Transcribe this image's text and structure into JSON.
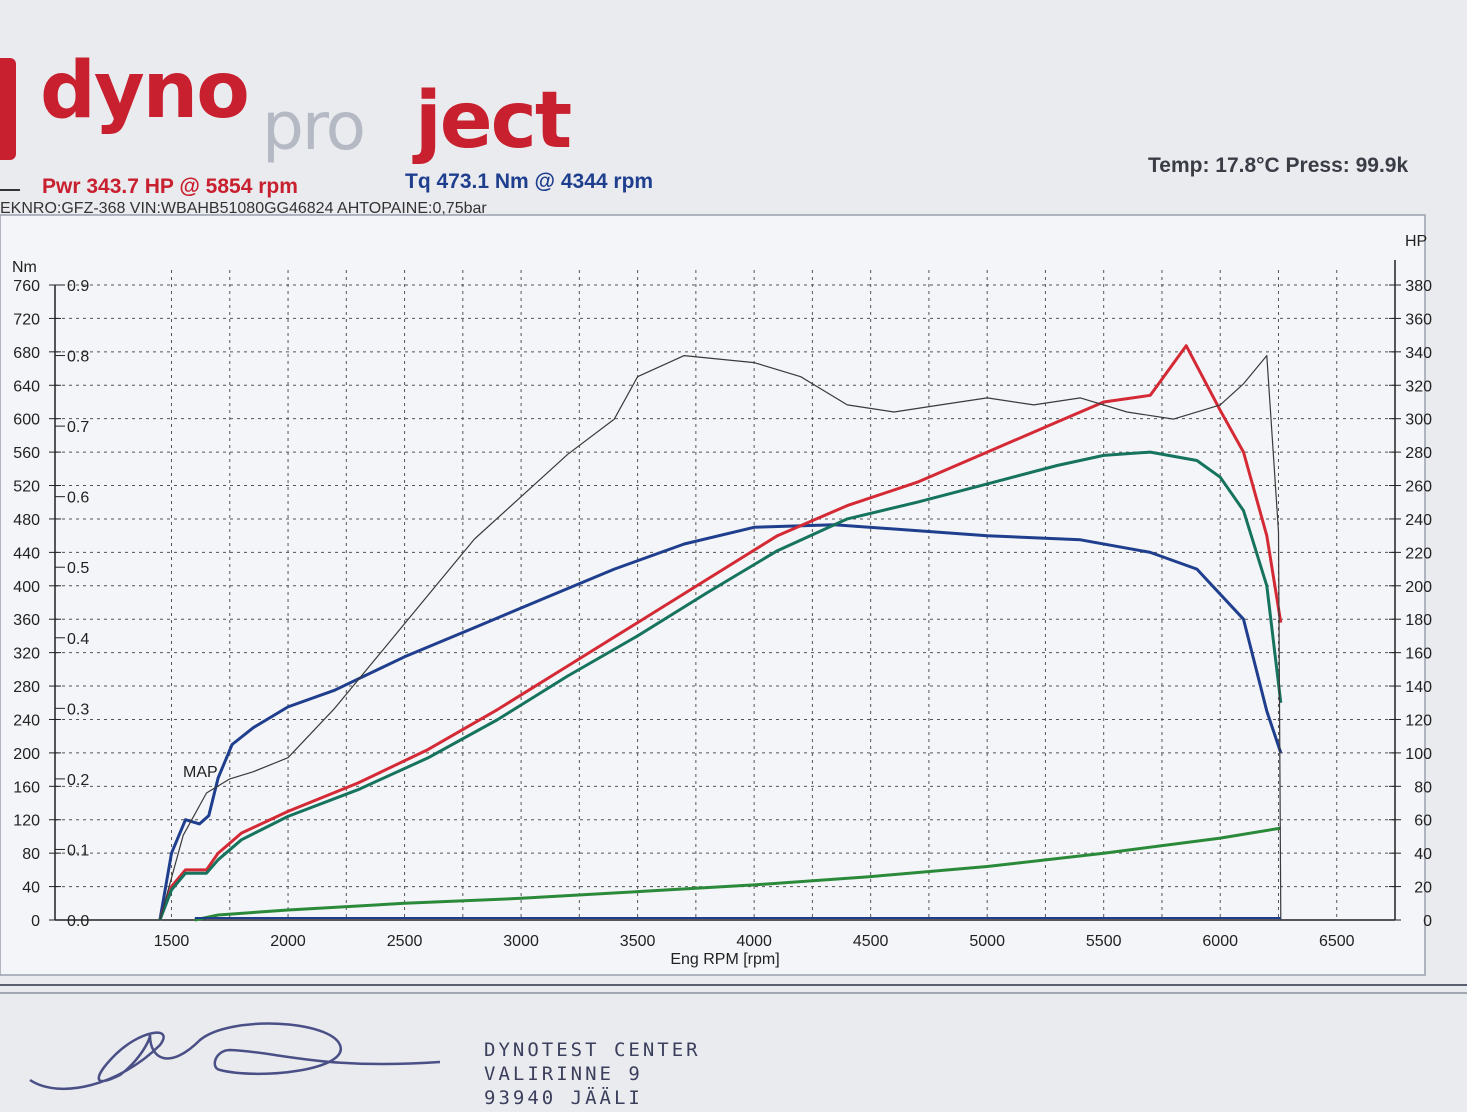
{
  "brand": {
    "part1": "dyno",
    "part2": "pro",
    "part3": "ject"
  },
  "header": {
    "power": "Pwr  343.7 HP @ 5854 rpm",
    "torque": "Tq 473.1 Nm @ 4344 rpm",
    "conditions": "Temp: 17.8°C   Press: 99.9k",
    "vehicle": "EKNRO:GFZ-368 VIN:WBAHB51080GG46824 AHTOPAINE:0,75bar"
  },
  "footer": {
    "lines": [
      "DYNOTEST CENTER",
      "VALIRINNE 9",
      "93940 JÄÄLI"
    ]
  },
  "colors": {
    "torque": "#1f3f8e",
    "power": "#d42a36",
    "power_alt": "#16735e",
    "loss": "#2b8a3a",
    "map": "#3a3a3a"
  },
  "chart_data": {
    "type": "line",
    "xlabel": "Eng RPM [rpm]",
    "x_ticks": [
      1500,
      2000,
      2500,
      3000,
      3500,
      4000,
      4500,
      5000,
      5500,
      6000,
      6500
    ],
    "xlim": [
      1000,
      6750
    ],
    "left_axis": {
      "label": "Nm",
      "ylim": [
        0,
        760
      ],
      "ticks": [
        0,
        40,
        80,
        120,
        160,
        200,
        240,
        280,
        320,
        360,
        400,
        440,
        480,
        520,
        560,
        600,
        640,
        680,
        720,
        760
      ]
    },
    "right_axis": {
      "label": "HP",
      "ylim": [
        0,
        380
      ],
      "ticks": [
        0,
        20,
        40,
        60,
        80,
        100,
        120,
        140,
        160,
        180,
        200,
        220,
        240,
        260,
        280,
        300,
        320,
        340,
        360,
        380
      ]
    },
    "map_axis": {
      "ylim": [
        0,
        0.9
      ],
      "ticks": [
        "0.0",
        "0.1",
        "0.2",
        "0.3",
        "0.4",
        "0.5",
        "0.6",
        "0.7",
        "0.8",
        "0.9"
      ]
    },
    "annotation": "MAP",
    "series": [
      {
        "axis": "left",
        "color": "#1f3f8e",
        "x": [
          1450,
          1500,
          1560,
          1620,
          1660,
          1700,
          1760,
          1850,
          2000,
          2200,
          2500,
          2800,
          3100,
          3400,
          3700,
          4000,
          4344,
          4600,
          5000,
          5400,
          5700,
          5900,
          6100,
          6200,
          6260
        ],
        "y": [
          0,
          80,
          120,
          115,
          125,
          170,
          210,
          230,
          255,
          275,
          315,
          350,
          385,
          420,
          450,
          470,
          473,
          468,
          460,
          455,
          440,
          420,
          360,
          250,
          200
        ]
      },
      {
        "axis": "right",
        "color": "#d42a36",
        "x": [
          1450,
          1500,
          1560,
          1650,
          1700,
          1800,
          2000,
          2300,
          2600,
          2900,
          3200,
          3500,
          3800,
          4100,
          4400,
          4700,
          5000,
          5300,
          5500,
          5700,
          5854,
          6000,
          6100,
          6200,
          6260
        ],
        "y": [
          0,
          20,
          30,
          30,
          40,
          52,
          65,
          82,
          102,
          126,
          152,
          178,
          204,
          230,
          248,
          262,
          280,
          298,
          310,
          314,
          343.7,
          305,
          280,
          230,
          178
        ]
      },
      {
        "axis": "right",
        "color": "#16735e",
        "x": [
          1450,
          1500,
          1560,
          1650,
          1700,
          1800,
          2000,
          2300,
          2600,
          2900,
          3200,
          3500,
          3800,
          4100,
          4400,
          4700,
          5000,
          5300,
          5500,
          5700,
          5900,
          6000,
          6100,
          6200,
          6260
        ],
        "y": [
          0,
          18,
          28,
          28,
          36,
          48,
          62,
          78,
          97,
          120,
          146,
          170,
          196,
          221,
          240,
          250,
          261,
          272,
          278,
          280,
          275,
          265,
          245,
          200,
          130
        ]
      },
      {
        "axis": "right",
        "color": "#2b8a3a",
        "x": [
          1600,
          1700,
          2000,
          2500,
          3000,
          3500,
          4000,
          4500,
          5000,
          5500,
          6000,
          6260
        ],
        "y": [
          0,
          3,
          6,
          10,
          13,
          17,
          21,
          26,
          32,
          40,
          49,
          55
        ]
      },
      {
        "axis": "map",
        "color": "#3a3a3a",
        "x": [
          1450,
          1550,
          1650,
          1750,
          1850,
          2000,
          2200,
          2400,
          2600,
          2800,
          3000,
          3200,
          3400,
          3500,
          3700,
          4000,
          4200,
          4400,
          4600,
          4800,
          5000,
          5200,
          5400,
          5600,
          5800,
          6000,
          6100,
          6200,
          6250,
          6260
        ],
        "y": [
          0,
          0.12,
          0.18,
          0.2,
          0.21,
          0.23,
          0.3,
          0.38,
          0.46,
          0.54,
          0.6,
          0.66,
          0.71,
          0.77,
          0.8,
          0.79,
          0.77,
          0.73,
          0.72,
          0.73,
          0.74,
          0.73,
          0.74,
          0.72,
          0.71,
          0.73,
          0.76,
          0.8,
          0.55,
          0.0
        ]
      }
    ]
  }
}
